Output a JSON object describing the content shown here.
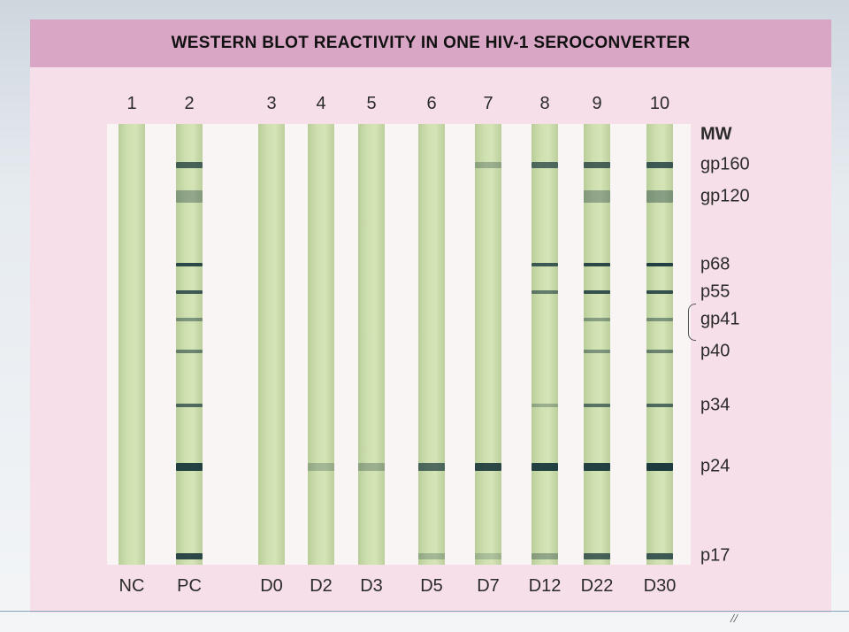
{
  "title": "WESTERN BLOT REACTIVITY IN ONE HIV-1 SEROCONVERTER",
  "lane_numbers": [
    "1",
    "2",
    "3",
    "4",
    "5",
    "6",
    "7",
    "8",
    "9",
    "10"
  ],
  "lane_codes": [
    "NC",
    "PC",
    "D0",
    "D2",
    "D3",
    "D5",
    "D7",
    "D12",
    "D22",
    "D30"
  ],
  "mw_header": "MW",
  "mw_labels": [
    "gp160",
    "gp120",
    "p68",
    "p55",
    "gp41",
    "p40",
    "p34",
    "p24",
    "p17"
  ],
  "colors": {
    "title_bar": "#d9a6c6",
    "panel": "#f7dfe9",
    "strip": "#cfe0b0",
    "band_dark": "#1f3a3a"
  },
  "bands_note_is_visual_only": false,
  "lane_bands": [
    [],
    [
      "gp160",
      "gp120",
      "p68",
      "p55",
      "gp41",
      "p40",
      "p34",
      "p24",
      "p17"
    ],
    [],
    [
      "p24"
    ],
    [
      "p24"
    ],
    [
      "p24",
      "p17"
    ],
    [
      "gp160",
      "p24",
      "p17"
    ],
    [
      "gp160",
      "p68",
      "p55",
      "p34",
      "p24",
      "p17"
    ],
    [
      "gp160",
      "gp120",
      "p68",
      "p55",
      "gp41",
      "p40",
      "p34",
      "p24",
      "p17"
    ],
    [
      "gp160",
      "gp120",
      "p68",
      "p55",
      "gp41",
      "p40",
      "p34",
      "p24",
      "p17"
    ]
  ],
  "band_intensity": [
    {},
    {
      "gp160": 0.75,
      "gp120": 0.35,
      "p68": 0.9,
      "p55": 0.8,
      "gp41": 0.45,
      "p40": 0.55,
      "p34": 0.7,
      "p24": 0.95,
      "p17": 0.9
    },
    {},
    {
      "p24": 0.25
    },
    {
      "p24": 0.3
    },
    {
      "p24": 0.7,
      "p17": 0.25
    },
    {
      "gp160": 0.3,
      "p24": 0.9,
      "p17": 0.2
    },
    {
      "gp160": 0.7,
      "p68": 0.8,
      "p55": 0.6,
      "p34": 0.3,
      "p24": 0.95,
      "p17": 0.35
    },
    {
      "gp160": 0.75,
      "gp120": 0.35,
      "p68": 0.9,
      "p55": 0.85,
      "gp41": 0.4,
      "p40": 0.45,
      "p34": 0.65,
      "p24": 0.95,
      "p17": 0.75
    },
    {
      "gp160": 0.8,
      "gp120": 0.4,
      "p68": 0.95,
      "p55": 0.85,
      "gp41": 0.45,
      "p40": 0.55,
      "p34": 0.7,
      "p24": 0.98,
      "p17": 0.8
    }
  ]
}
